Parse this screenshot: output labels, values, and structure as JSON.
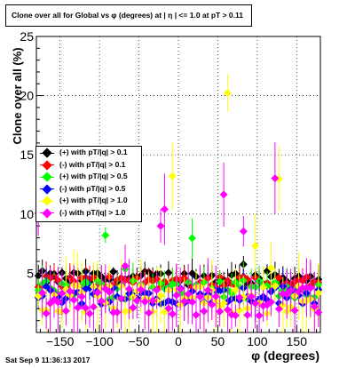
{
  "title": "Clone  over all for Global vs φ (degrees) at | η | <= 1.0 at pT > 0.11",
  "timestamp": "Sat Sep  9 11:36:13 2017",
  "chart_data": {
    "type": "scatter",
    "title": "Clone  over all for Global vs φ (degrees) at | η | <= 1.0 at pT > 0.11",
    "xlabel": "φ (degrees)",
    "ylabel": "Clone  over all (%)",
    "xlim": [
      -180,
      180
    ],
    "ylim": [
      0,
      25
    ],
    "x_ticks": [
      -150,
      -100,
      -50,
      0,
      50,
      100,
      150
    ],
    "x_tick_labels": [
      "−150",
      "−100",
      "−50",
      "0",
      "50",
      "100",
      "150"
    ],
    "y_ticks": [
      0,
      5,
      10,
      15,
      20,
      25
    ],
    "y_tick_labels": [
      "",
      "5",
      "10",
      "15",
      "20",
      "25"
    ],
    "grid": true,
    "legend_position": "center-left",
    "bins": 72,
    "series": [
      {
        "name": "(+) with pT/|q| > 0.1",
        "color": "#000000",
        "base": 4.6,
        "amp": 0.6,
        "spike_prob": 0.04,
        "spike_max": 6.5,
        "err": 0.9
      },
      {
        "name": "(-) with pT/|q| > 0.1",
        "color": "#ff0000",
        "base": 4.3,
        "amp": 0.5,
        "spike_prob": 0.04,
        "spike_max": 6.0,
        "err": 0.9
      },
      {
        "name": "(+) with pT/|q| > 0.5",
        "color": "#00ff00",
        "base": 3.6,
        "amp": 0.8,
        "spike_prob": 0.05,
        "spike_max": 8.5,
        "err": 1.2
      },
      {
        "name": "(-) with pT/|q| > 0.5",
        "color": "#0000ff",
        "base": 3.2,
        "amp": 0.8,
        "spike_prob": 0.04,
        "spike_max": 6.5,
        "err": 1.2
      },
      {
        "name": "(+) with pT/|q| > 1.0",
        "color": "#ffff00",
        "base": 2.8,
        "amp": 1.2,
        "spike_prob": 0.12,
        "spike_max": 21.5,
        "err": 2.2
      },
      {
        "name": "(-) with pT/|q| > 1.0",
        "color": "#ff00ff",
        "base": 2.6,
        "amp": 1.2,
        "spike_prob": 0.12,
        "spike_max": 15.0,
        "err": 2.2
      }
    ]
  }
}
